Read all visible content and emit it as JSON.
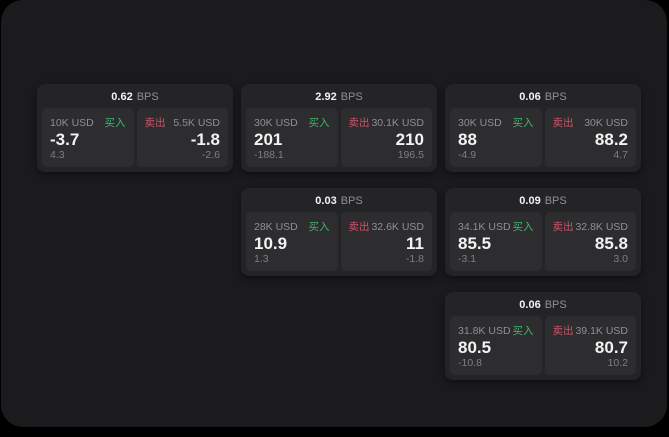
{
  "theme": {
    "panel_bg": "#1b1b1d",
    "card_bg": "#242426",
    "tile_bg": "#2d2d2f",
    "text_primary": "#f2f2f3",
    "text_muted": "#909093",
    "delta_gray": "#7f7f82",
    "buy_green": "#42b46f",
    "sell_red": "#cf5268"
  },
  "labels": {
    "bps_suffix": "BPS",
    "buy": "买入",
    "sell": "卖出"
  },
  "cards": [
    {
      "row": 1,
      "col": 1,
      "bps": "0.62",
      "buy": {
        "amount": "10K USD",
        "value": "-3.7",
        "delta": "4.3"
      },
      "sell": {
        "amount": "5.5K USD",
        "value": "-1.8",
        "delta": "-2.6"
      }
    },
    {
      "row": 1,
      "col": 2,
      "bps": "2.92",
      "buy": {
        "amount": "30K USD",
        "value": "201",
        "delta": "-188.1"
      },
      "sell": {
        "amount": "30.1K USD",
        "value": "210",
        "delta": "196.5"
      }
    },
    {
      "row": 1,
      "col": 3,
      "bps": "0.06",
      "buy": {
        "amount": "30K USD",
        "value": "88",
        "delta": "-4.9"
      },
      "sell": {
        "amount": "30K USD",
        "value": "88.2",
        "delta": "4.7"
      }
    },
    {
      "row": 2,
      "col": 2,
      "bps": "0.03",
      "buy": {
        "amount": "28K USD",
        "value": "10.9",
        "delta": "1.3"
      },
      "sell": {
        "amount": "32.6K USD",
        "value": "11",
        "delta": "-1.8"
      }
    },
    {
      "row": 2,
      "col": 3,
      "bps": "0.09",
      "buy": {
        "amount": "34.1K USD",
        "value": "85.5",
        "delta": "-3.1"
      },
      "sell": {
        "amount": "32.8K USD",
        "value": "85.8",
        "delta": "3.0"
      }
    },
    {
      "row": 3,
      "col": 3,
      "bps": "0.06",
      "buy": {
        "amount": "31.8K USD",
        "value": "80.5",
        "delta": "-10.8"
      },
      "sell": {
        "amount": "39.1K USD",
        "value": "80.7",
        "delta": "10.2"
      }
    }
  ]
}
